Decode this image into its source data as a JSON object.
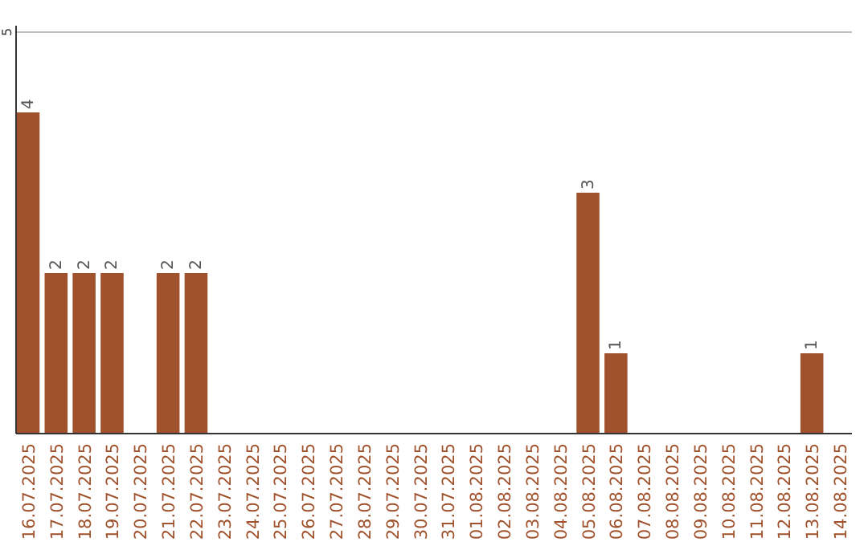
{
  "chart_data": {
    "type": "bar",
    "categories": [
      "16.07.2025",
      "17.07.2025",
      "18.07.2025",
      "19.07.2025",
      "20.07.2025",
      "21.07.2025",
      "22.07.2025",
      "23.07.2025",
      "24.07.2025",
      "25.07.2025",
      "26.07.2025",
      "27.07.2025",
      "28.07.2025",
      "29.07.2025",
      "30.07.2025",
      "31.07.2025",
      "01.08.2025",
      "02.08.2025",
      "03.08.2025",
      "04.08.2025",
      "05.08.2025",
      "06.08.2025",
      "07.08.2025",
      "08.08.2025",
      "09.08.2025",
      "10.08.2025",
      "11.08.2025",
      "12.08.2025",
      "13.08.2025",
      "14.08.2025"
    ],
    "values": [
      4,
      2,
      2,
      2,
      null,
      2,
      2,
      null,
      null,
      null,
      null,
      null,
      null,
      null,
      null,
      null,
      null,
      null,
      null,
      null,
      3,
      1,
      null,
      null,
      null,
      null,
      null,
      null,
      1,
      null
    ],
    "color": "#a0522d",
    "ylim": [
      0,
      5
    ],
    "yticks": [
      5
    ],
    "ref_lines": [
      {
        "axis": "y",
        "value": 5,
        "color": "#c0c0c0"
      }
    ],
    "data_labels": true
  }
}
